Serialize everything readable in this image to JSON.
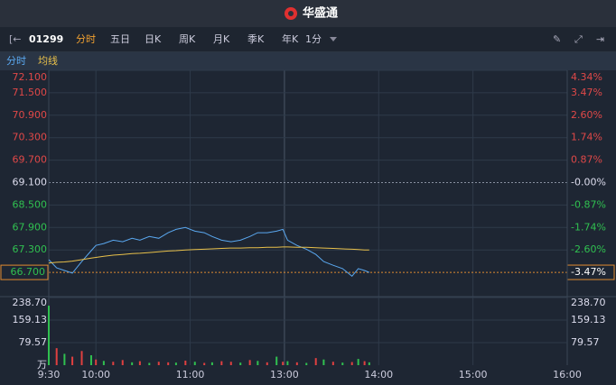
{
  "header": {
    "title": "华盛通"
  },
  "toolbar": {
    "code": "01299",
    "tabs": [
      "分时",
      "五日",
      "日K",
      "周K",
      "月K",
      "季K",
      "年K"
    ],
    "interval": "1分"
  },
  "chart_data": [
    {
      "type": "line",
      "x": [
        0,
        5,
        10,
        15,
        21,
        27,
        30,
        35,
        41,
        47,
        53,
        58,
        64,
        70,
        76,
        81,
        87,
        93,
        99,
        104,
        110,
        116,
        122,
        128,
        133,
        139,
        145,
        149,
        152,
        158,
        164,
        170,
        175,
        181,
        187,
        193,
        197,
        201,
        204
      ],
      "series": [
        {
          "name": "分时",
          "color": "#5aa8f0",
          "values": [
            67.04,
            66.82,
            66.75,
            66.68,
            66.99,
            67.28,
            67.42,
            67.47,
            67.56,
            67.52,
            67.61,
            67.56,
            67.66,
            67.61,
            67.76,
            67.85,
            67.9,
            67.8,
            67.76,
            67.66,
            67.56,
            67.52,
            67.56,
            67.66,
            67.76,
            67.76,
            67.8,
            67.85,
            67.56,
            67.42,
            67.32,
            67.18,
            66.99,
            66.89,
            66.8,
            66.6,
            66.8,
            66.75,
            66.7
          ]
        },
        {
          "name": "均线",
          "color": "#e8c04a",
          "values": [
            66.95,
            66.97,
            66.98,
            67.0,
            67.04,
            67.08,
            67.1,
            67.13,
            67.16,
            67.18,
            67.2,
            67.21,
            67.23,
            67.25,
            67.27,
            67.28,
            67.3,
            67.31,
            67.32,
            67.33,
            67.34,
            67.35,
            67.35,
            67.36,
            67.36,
            67.37,
            67.37,
            67.38,
            67.38,
            67.37,
            67.37,
            67.36,
            67.35,
            67.34,
            67.33,
            67.32,
            67.31,
            67.3,
            67.3
          ]
        }
      ],
      "xlim": [
        0,
        330
      ],
      "xticks": [
        {
          "value": 0,
          "label": "9:30"
        },
        {
          "value": 30,
          "label": "10:00"
        },
        {
          "value": 90,
          "label": "11:00"
        },
        {
          "value": 150,
          "label": "13:00"
        },
        {
          "value": 210,
          "label": "14:00"
        },
        {
          "value": 270,
          "label": "15:00"
        },
        {
          "value": 330,
          "label": "16:00"
        }
      ],
      "ylim": [
        66.1,
        72.1
      ],
      "yticks": [
        {
          "value": 72.1,
          "label": "72.100"
        },
        {
          "value": 71.5,
          "label": "71.500"
        },
        {
          "value": 70.9,
          "label": "70.900"
        },
        {
          "value": 70.3,
          "label": "70.300"
        },
        {
          "value": 69.7,
          "label": "69.700"
        },
        {
          "value": 69.1,
          "label": "69.100"
        },
        {
          "value": 68.5,
          "label": "68.500"
        },
        {
          "value": 67.9,
          "label": "67.900"
        },
        {
          "value": 67.3,
          "label": "67.300"
        },
        {
          "value": 66.7,
          "label": "66.700"
        }
      ],
      "y2lim": [
        -4.34,
        4.34
      ],
      "y2ticks": [
        {
          "value": 4.34,
          "label": "4.34%"
        },
        {
          "value": 3.47,
          "label": "3.47%"
        },
        {
          "value": 2.6,
          "label": "2.60%"
        },
        {
          "value": 1.74,
          "label": "1.74%"
        },
        {
          "value": 0.87,
          "label": "0.87%"
        },
        {
          "value": 0,
          "label": "-0.00%"
        },
        {
          "value": -0.87,
          "label": "-0.87%"
        },
        {
          "value": -1.74,
          "label": "-1.74%"
        },
        {
          "value": -2.6,
          "label": "-2.60%"
        },
        {
          "value": -3.47,
          "label": "-3.47%"
        }
      ],
      "grid": true
    },
    {
      "type": "bar",
      "x": [
        0,
        5,
        10,
        15,
        21,
        27,
        30,
        35,
        41,
        47,
        53,
        58,
        64,
        70,
        76,
        81,
        87,
        93,
        99,
        104,
        110,
        116,
        122,
        128,
        133,
        139,
        145,
        149,
        152,
        158,
        164,
        170,
        175,
        181,
        187,
        193,
        197,
        201,
        204
      ],
      "values": [
        210,
        60,
        40,
        30,
        50,
        35,
        20,
        15,
        12,
        18,
        10,
        14,
        8,
        12,
        10,
        9,
        16,
        12,
        8,
        10,
        14,
        12,
        9,
        18,
        15,
        10,
        30,
        12,
        14,
        10,
        8,
        25,
        20,
        12,
        9,
        11,
        22,
        14,
        10
      ],
      "colors": [
        "#30c050",
        "#e04040",
        "#30c050",
        "#e04040",
        "#e04040",
        "#30c050",
        "#e04040",
        "#30c050",
        "#e04040",
        "#e04040",
        "#30c050",
        "#e04040",
        "#30c050",
        "#e04040",
        "#e04040",
        "#30c050",
        "#e04040",
        "#30c050",
        "#e04040",
        "#30c050",
        "#e04040",
        "#e04040",
        "#30c050",
        "#e04040",
        "#30c050",
        "#e04040",
        "#30c050",
        "#e04040",
        "#30c050",
        "#e04040",
        "#30c050",
        "#e04040",
        "#30c050",
        "#e04040",
        "#30c050",
        "#e04040",
        "#30c050",
        "#e04040",
        "#30c050"
      ],
      "xlim": [
        0,
        330
      ],
      "ylim": [
        0,
        238.7
      ],
      "yticks": [
        {
          "value": 238.7,
          "label": "238.70"
        },
        159.13,
        79.57,
        {
          "value": 0,
          "label": "万"
        }
      ]
    }
  ]
}
